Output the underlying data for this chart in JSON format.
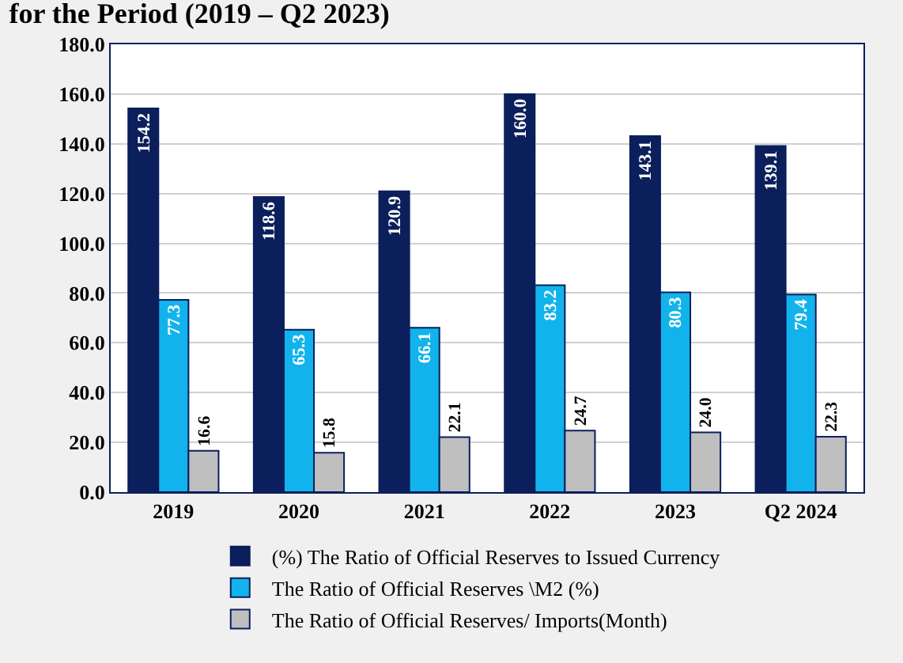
{
  "chart_data": {
    "type": "bar",
    "title": "for the Period (2019 – Q2 2023)",
    "categories": [
      "2019",
      "2020",
      "2021",
      "2022",
      "2023",
      "Q2 2024"
    ],
    "series": [
      {
        "name": "(%) The Ratio of Official Reserves to Issued Currency",
        "color": "#0b1f5c",
        "values": [
          154.2,
          118.6,
          120.9,
          160.0,
          143.1,
          139.1
        ],
        "value_labels": [
          "154.2",
          "118.6",
          "120.9",
          "160.0",
          "143.1",
          "139.1"
        ]
      },
      {
        "name": "The Ratio of Official Reserves \\M2 (%)",
        "color": "#12b3ec",
        "values": [
          77.3,
          65.3,
          66.1,
          83.2,
          80.3,
          79.4
        ],
        "value_labels": [
          "77.3",
          "65.3",
          "66.1",
          "83.2",
          "80.3",
          "79.4"
        ]
      },
      {
        "name": "The Ratio of Official Reserves/ Imports(Month)",
        "color": "#bfbfbf",
        "values": [
          16.6,
          15.8,
          22.1,
          24.7,
          24.0,
          22.3
        ],
        "value_labels": [
          "16.6",
          "15.8",
          "22.1",
          "24.7",
          "24.0",
          "22.3"
        ]
      }
    ],
    "ylim": [
      0,
      180
    ],
    "yticks": [
      {
        "value": 0,
        "label": "0.0"
      },
      {
        "value": 20,
        "label": "20.0"
      },
      {
        "value": 40,
        "label": "40.0"
      },
      {
        "value": 60,
        "label": "60.0"
      },
      {
        "value": 80,
        "label": "80.0"
      },
      {
        "value": 100,
        "label": "100.0"
      },
      {
        "value": 120,
        "label": "120.0"
      },
      {
        "value": 140,
        "label": "140.0"
      },
      {
        "value": 160,
        "label": "160.0"
      },
      {
        "value": 180,
        "label": "180.0"
      }
    ],
    "grid": "y",
    "legend": "bottom"
  }
}
